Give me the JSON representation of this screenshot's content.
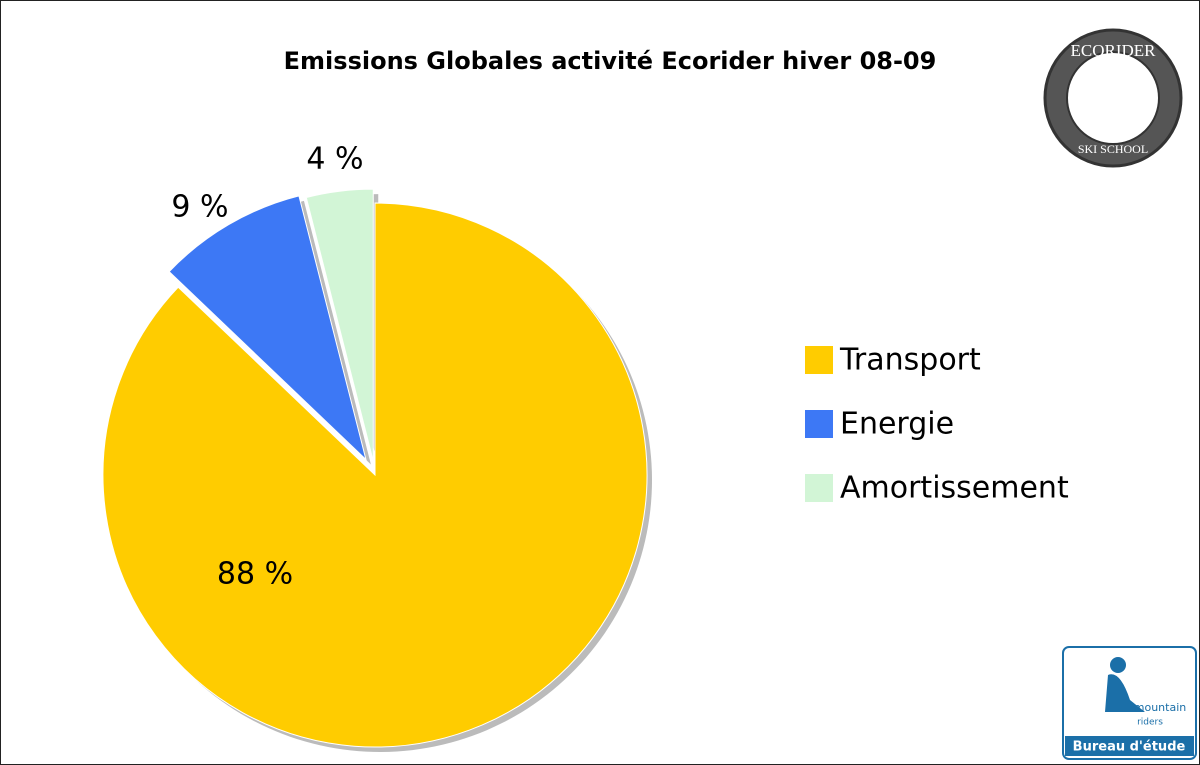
{
  "chart_data": {
    "type": "pie",
    "title": "Emissions Globales activité Ecorider hiver 08-09",
    "categories": [
      "Transport",
      "Energie",
      "Amortissement"
    ],
    "values": [
      88,
      9,
      4
    ],
    "value_labels": [
      "88 %",
      "9 %",
      "4 %"
    ],
    "colors": [
      "#ffcc00",
      "#3d78f5",
      "#d2f5d6"
    ],
    "legend": "right"
  },
  "logos": [
    {
      "text": "ECORIDER",
      "subtext": "SKI SCHOOL"
    },
    {
      "text": "mountain",
      "subtext": "riders",
      "caption": "Bureau d'étude"
    }
  ]
}
